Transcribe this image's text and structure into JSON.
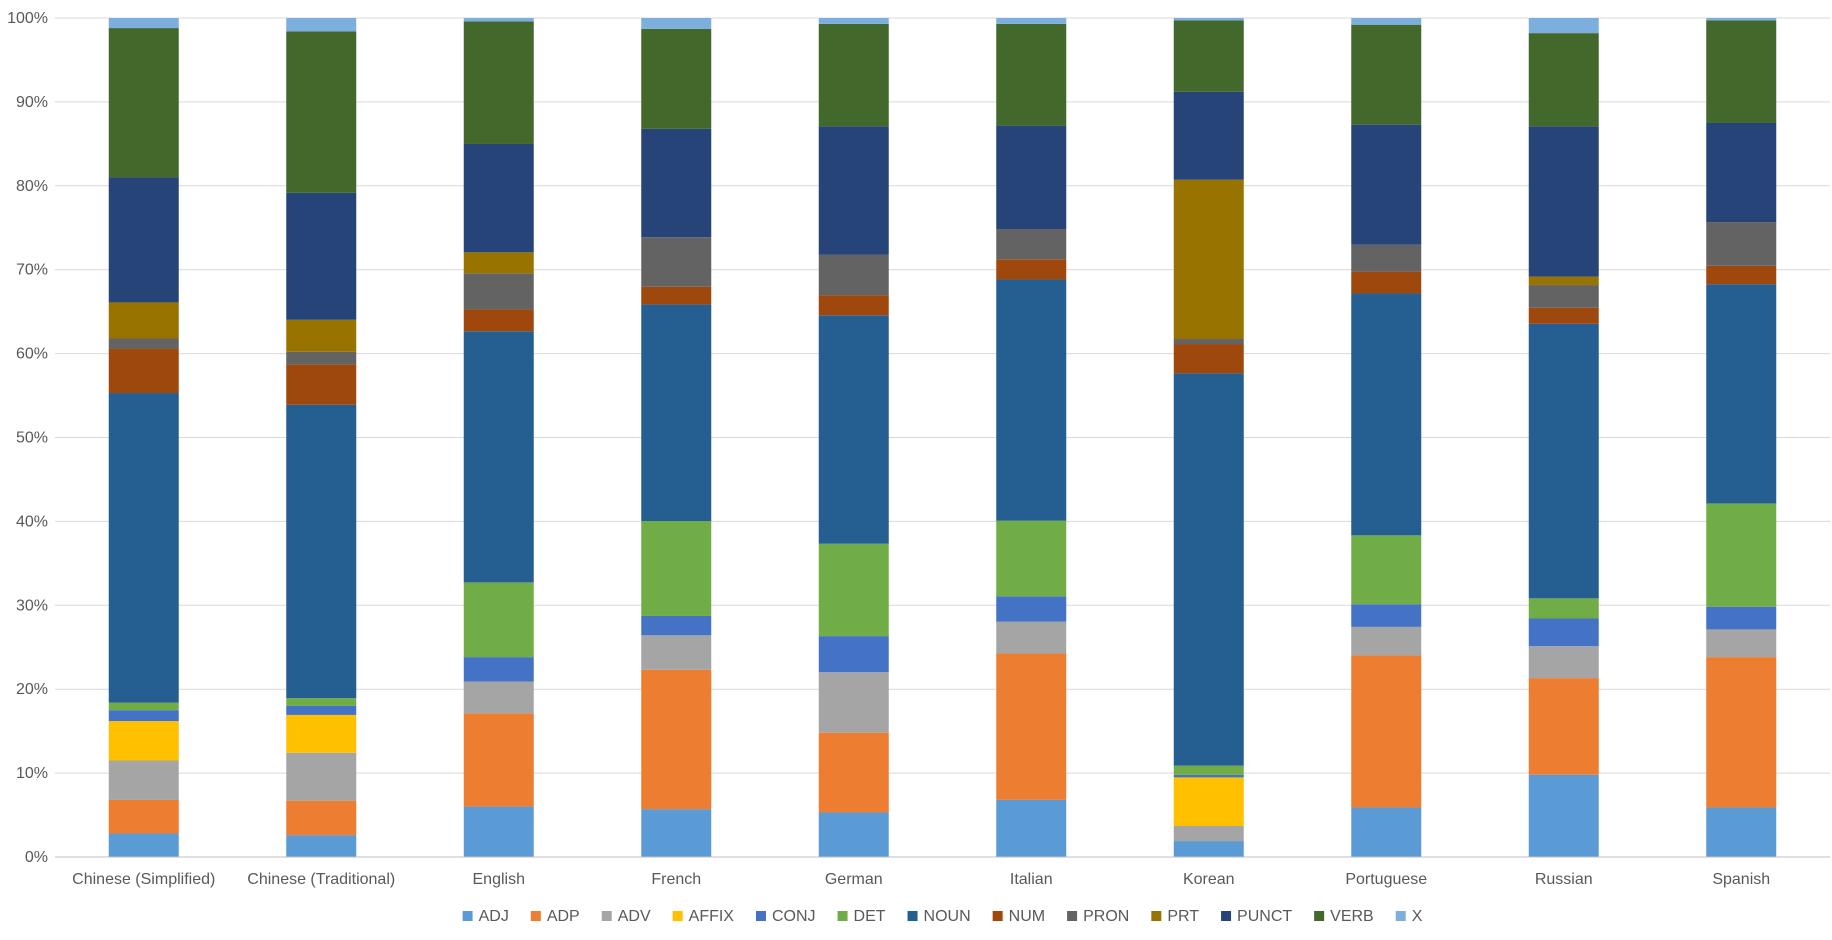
{
  "chart_data": {
    "type": "bar",
    "stacked": "percent",
    "categories": [
      "Chinese (Simplified)",
      "Chinese (Traditional)",
      "English",
      "French",
      "German",
      "Italian",
      "Korean",
      "Portuguese",
      "Russian",
      "Spanish"
    ],
    "ylim": [
      0,
      100
    ],
    "y_ticks": [
      "0%",
      "10%",
      "20%",
      "30%",
      "40%",
      "50%",
      "60%",
      "70%",
      "80%",
      "90%",
      "100%"
    ],
    "grid": true,
    "legend_position": "bottom",
    "series": [
      {
        "name": "ADJ",
        "color": "#5B9BD5",
        "values": [
          2.8,
          2.6,
          6.0,
          5.7,
          5.3,
          6.8,
          1.9,
          5.9,
          9.8,
          5.9
        ]
      },
      {
        "name": "ADP",
        "color": "#ED7D31",
        "values": [
          4.0,
          4.1,
          11.1,
          16.6,
          9.5,
          17.4,
          0.0,
          18.1,
          11.5,
          17.9
        ]
      },
      {
        "name": "ADV",
        "color": "#A5A5A5",
        "values": [
          4.7,
          5.7,
          3.8,
          4.1,
          7.2,
          3.8,
          1.8,
          3.4,
          3.8,
          3.3
        ]
      },
      {
        "name": "AFFIX",
        "color": "#FFC000",
        "values": [
          4.7,
          4.5,
          0.0,
          0.0,
          0.0,
          0.0,
          5.8,
          0.0,
          0.0,
          0.0
        ]
      },
      {
        "name": "CONJ",
        "color": "#4472C4",
        "values": [
          1.3,
          1.1,
          2.9,
          2.3,
          4.3,
          3.0,
          0.3,
          2.7,
          3.3,
          2.7
        ]
      },
      {
        "name": "DET",
        "color": "#70AD47",
        "values": [
          0.9,
          0.9,
          8.9,
          11.3,
          11.0,
          9.0,
          1.1,
          8.2,
          2.4,
          12.3
        ]
      },
      {
        "name": "NOUN",
        "color": "#255E91",
        "values": [
          36.9,
          34.9,
          29.9,
          25.8,
          27.2,
          28.7,
          46.8,
          28.8,
          32.7,
          26.1
        ]
      },
      {
        "name": "NUM",
        "color": "#9E480E",
        "values": [
          5.3,
          4.8,
          2.6,
          2.1,
          2.4,
          2.4,
          3.5,
          2.6,
          1.9,
          2.2
        ]
      },
      {
        "name": "PRON",
        "color": "#636363",
        "values": [
          1.2,
          1.5,
          4.3,
          5.9,
          4.8,
          3.6,
          0.6,
          3.2,
          2.7,
          5.2
        ]
      },
      {
        "name": "PRT",
        "color": "#997300",
        "values": [
          4.3,
          3.8,
          2.5,
          0.0,
          0.0,
          0.0,
          19.0,
          0.0,
          1.0,
          0.0
        ]
      },
      {
        "name": "PUNCT",
        "color": "#264478",
        "values": [
          14.9,
          15.1,
          12.9,
          12.9,
          15.3,
          12.3,
          10.5,
          14.3,
          17.9,
          11.8
        ]
      },
      {
        "name": "VERB",
        "color": "#43682B",
        "values": [
          17.8,
          19.2,
          14.6,
          11.9,
          12.2,
          12.1,
          8.5,
          11.9,
          11.1,
          12.2
        ]
      },
      {
        "name": "X",
        "color": "#7CAFDD",
        "values": [
          1.2,
          1.6,
          0.4,
          1.3,
          0.7,
          0.7,
          0.3,
          0.8,
          1.8,
          0.3
        ]
      }
    ]
  }
}
